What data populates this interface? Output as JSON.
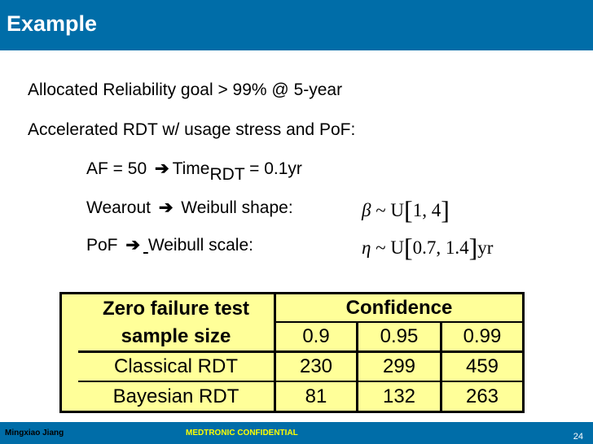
{
  "slide": {
    "title": "Example",
    "bullets": [
      "Allocated Reliability goal > 99% @ 5-year",
      "Accelerated RDT w/ usage stress and PoF:"
    ],
    "sub_items": {
      "af": {
        "prefix": "AF = 50",
        "arrow": "➔",
        "label": "Time",
        "subscript": "RDT",
        "suffix": " = 0.1yr"
      },
      "wearout": {
        "prefix": "Wearout",
        "arrow": "➔",
        "label": "Weibull shape:"
      },
      "pof": {
        "prefix": "PoF",
        "arrow": "➔",
        "label": "Weibull scale:"
      }
    },
    "formulas": {
      "beta": {
        "symbol": "β",
        "tilde": " ~ U",
        "lb": "[",
        "content": "1, 4",
        "rb": "]",
        "unit": ""
      },
      "eta": {
        "symbol": "η",
        "tilde": " ~ U",
        "lb": "[",
        "content": "0.7, 1.4",
        "rb": "]",
        "unit": "yr"
      }
    }
  },
  "table": {
    "header_left_line1": "Zero failure test",
    "header_left_line2": "sample size",
    "header_group": "Confidence",
    "confidence_levels": [
      "0.9",
      "0.95",
      "0.99"
    ],
    "rows": [
      {
        "label": "Classical RDT",
        "values": [
          "230",
          "299",
          "459"
        ]
      },
      {
        "label": "Bayesian RDT",
        "values": [
          "81",
          "132",
          "263"
        ]
      }
    ]
  },
  "footer": {
    "author": "Mingxiao Jiang",
    "confidentiality": "MEDTRONIC CONFIDENTIAL",
    "page_number": "24"
  },
  "colors": {
    "brand_blue": "#006da8",
    "table_fill": "#ffff99",
    "confidential_text": "#ffff00"
  }
}
